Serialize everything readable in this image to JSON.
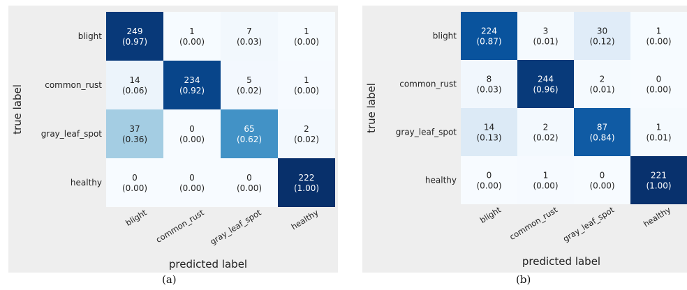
{
  "chart_data": [
    {
      "type": "heatmap",
      "panel_caption": "(a)",
      "xlabel": "predicted label",
      "ylabel": "true label",
      "categories": [
        "blight",
        "common_rust",
        "gray_leaf_spot",
        "healthy"
      ],
      "counts": [
        [
          249,
          1,
          7,
          1
        ],
        [
          14,
          234,
          5,
          1
        ],
        [
          37,
          0,
          65,
          2
        ],
        [
          0,
          0,
          0,
          222
        ]
      ],
      "fractions": [
        [
          "0.97",
          "0.00",
          "0.03",
          "0.00"
        ],
        [
          "0.06",
          "0.92",
          "0.02",
          "0.00"
        ],
        [
          "0.36",
          "0.00",
          "0.62",
          "0.02"
        ],
        [
          "0.00",
          "0.00",
          "0.00",
          "1.00"
        ]
      ],
      "colormap": "Blues"
    },
    {
      "type": "heatmap",
      "panel_caption": "(b)",
      "xlabel": "predicted label",
      "ylabel": "true label",
      "categories": [
        "blight",
        "common_rust",
        "gray_leaf_spot",
        "healthy"
      ],
      "counts": [
        [
          224,
          3,
          30,
          1
        ],
        [
          8,
          244,
          2,
          0
        ],
        [
          14,
          2,
          87,
          1
        ],
        [
          0,
          1,
          0,
          221
        ]
      ],
      "fractions": [
        [
          "0.87",
          "0.01",
          "0.12",
          "0.00"
        ],
        [
          "0.03",
          "0.96",
          "0.01",
          "0.00"
        ],
        [
          "0.13",
          "0.02",
          "0.84",
          "0.01"
        ],
        [
          "0.00",
          "0.00",
          "0.00",
          "1.00"
        ]
      ],
      "colormap": "Blues"
    }
  ],
  "colors": {
    "panel_background": "#eeeeee",
    "cell_low": "#f7fbff",
    "cell_high": "#08306b"
  }
}
